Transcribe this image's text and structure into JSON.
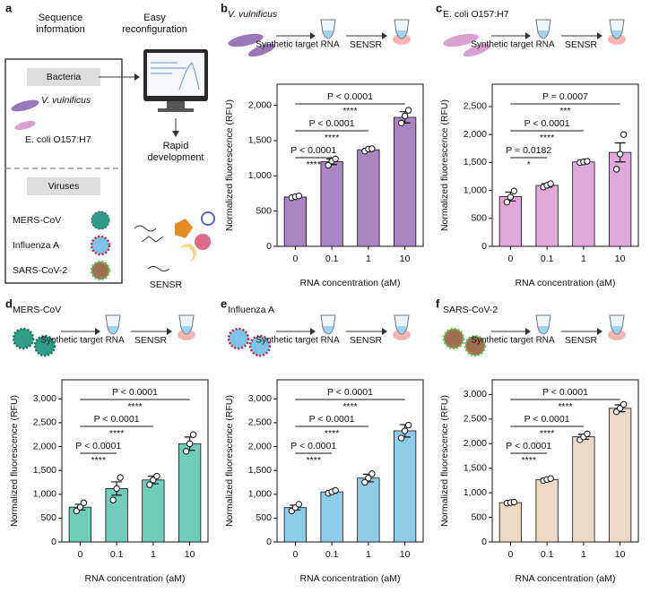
{
  "panel_a": {
    "label": "a",
    "sequence": "Sequence information",
    "reconfig": "Easy reconfiguration",
    "bacteria_header": "Bacteria",
    "bacteria": [
      "V. vulnificus",
      "E. coli O157:H7"
    ],
    "virus_header": "Viruses",
    "viruses": [
      "MERS-CoV",
      "Influenza A",
      "SARS-CoV-2"
    ],
    "development": "Rapid development",
    "product": "SENSR"
  },
  "chart_data": [
    {
      "type": "bar",
      "panel": "b",
      "organism": "V. vulnificus",
      "steps": [
        "Synthetic target RNA",
        "SENSR"
      ],
      "ylabel": "Normalized fluorescence (RFU)",
      "xlabel": "RNA concentration (aM)",
      "categories": [
        "0",
        "0.1",
        "1",
        "10"
      ],
      "values": [
        700,
        1200,
        1370,
        1830
      ],
      "errors": [
        15,
        40,
        20,
        80
      ],
      "points": [
        [
          690,
          705,
          715
        ],
        [
          1150,
          1210,
          1240
        ],
        [
          1350,
          1380,
          1385
        ],
        [
          1750,
          1850,
          1930
        ]
      ],
      "color": "#a985c3",
      "ylim": [
        0,
        2300
      ],
      "yticks": [
        0,
        500,
        {
          "value": 1000,
          "label": "1,000"
        },
        {
          "value": 1500,
          "label": "1,500"
        },
        {
          "value": 2000,
          "label": "2,000"
        }
      ],
      "comparisons": [
        {
          "p": "P < 0.0001",
          "stars": "****"
        },
        {
          "p": "P < 0.0001",
          "stars": "****"
        },
        {
          "p": "P < 0.0001",
          "stars": "****"
        }
      ]
    },
    {
      "type": "bar",
      "panel": "c",
      "organism": "E. coli O157:H7",
      "steps": [
        "Synthetic target RNA",
        "SENSR"
      ],
      "ylabel": "Normalized fluorescence (RFU)",
      "xlabel": "RNA concentration (aM)",
      "categories": [
        "0",
        "0.1",
        "1",
        "10"
      ],
      "values": [
        890,
        1090,
        1510,
        1680
      ],
      "errors": [
        80,
        30,
        15,
        170
      ],
      "points": [
        [
          790,
          880,
          990
        ],
        [
          1060,
          1090,
          1120
        ],
        [
          1500,
          1510,
          1520
        ],
        [
          1380,
          1650,
          2000
        ]
      ],
      "color": "#e1a8da",
      "ylim": [
        0,
        2900
      ],
      "yticks": [
        0,
        500,
        {
          "value": 1000,
          "label": "1,000"
        },
        {
          "value": 1500,
          "label": "1,500"
        },
        {
          "value": 2000,
          "label": "2,000"
        },
        {
          "value": 2500,
          "label": "2,500"
        }
      ],
      "comparisons": [
        {
          "p": "P = 0.0182",
          "stars": "*"
        },
        {
          "p": "P < 0.0001",
          "stars": "****"
        },
        {
          "p": "P = 0.0007",
          "stars": "***"
        }
      ]
    },
    {
      "type": "bar",
      "panel": "d",
      "organism": "MERS-CoV",
      "steps": [
        "Synthetic target RNA",
        "SENSR"
      ],
      "ylabel": "Normalized fluorescence (RFU)",
      "xlabel": "RNA concentration (aM)",
      "categories": [
        "0",
        "0.1",
        "1",
        "10"
      ],
      "values": [
        730,
        1120,
        1300,
        2060
      ],
      "errors": [
        60,
        140,
        80,
        140
      ],
      "points": [
        [
          650,
          730,
          820
        ],
        [
          880,
          1120,
          1350
        ],
        [
          1200,
          1300,
          1380
        ],
        [
          1900,
          2060,
          2250
        ]
      ],
      "color": "#6fcdb9",
      "ylim": [
        0,
        3400
      ],
      "yticks": [
        0,
        500,
        {
          "value": 1000,
          "label": "1,000"
        },
        {
          "value": 1500,
          "label": "1,500"
        },
        {
          "value": 2000,
          "label": "2,000"
        },
        {
          "value": 2500,
          "label": "2,500"
        },
        {
          "value": 3000,
          "label": "3,000"
        }
      ],
      "comparisons": [
        {
          "p": "P < 0.0001",
          "stars": "****"
        },
        {
          "p": "P < 0.0001",
          "stars": "****"
        },
        {
          "p": "P < 0.0001",
          "stars": "****"
        }
      ]
    },
    {
      "type": "bar",
      "panel": "e",
      "organism": "Influenza A",
      "steps": [
        "Synthetic target RNA",
        "SENSR"
      ],
      "ylabel": "Normalized fluorescence (RFU)",
      "xlabel": "RNA concentration (aM)",
      "categories": [
        "0",
        "0.1",
        "1",
        "10"
      ],
      "values": [
        720,
        1050,
        1340,
        2330
      ],
      "errors": [
        50,
        30,
        80,
        130
      ],
      "points": [
        [
          650,
          720,
          790
        ],
        [
          1020,
          1050,
          1080
        ],
        [
          1250,
          1340,
          1430
        ],
        [
          2180,
          2330,
          2450
        ]
      ],
      "color": "#8ecdea",
      "ylim": [
        0,
        3400
      ],
      "yticks": [
        0,
        500,
        {
          "value": 1000,
          "label": "1,000"
        },
        {
          "value": 1500,
          "label": "1,500"
        },
        {
          "value": 2000,
          "label": "2,000"
        },
        {
          "value": 2500,
          "label": "2,500"
        },
        {
          "value": 3000,
          "label": "3,000"
        }
      ],
      "comparisons": [
        {
          "p": "P < 0.0001",
          "stars": "****"
        },
        {
          "p": "P < 0.0001",
          "stars": "****"
        },
        {
          "p": "P < 0.0001",
          "stars": "****"
        }
      ]
    },
    {
      "type": "bar",
      "panel": "f",
      "organism": "SARS-CoV-2",
      "steps": [
        "Synthetic target RNA",
        "SENSR"
      ],
      "ylabel": "Normalized fluorescence (RFU)",
      "xlabel": "RNA concentration (aM)",
      "categories": [
        "0",
        "0.1",
        "1",
        "10"
      ],
      "values": [
        800,
        1270,
        2140,
        2720
      ],
      "errors": [
        15,
        20,
        50,
        70
      ],
      "points": [
        [
          790,
          800,
          810
        ],
        [
          1250,
          1270,
          1290
        ],
        [
          2080,
          2140,
          2200
        ],
        [
          2650,
          2720,
          2800
        ]
      ],
      "color": "#ead9c5",
      "ylim": [
        0,
        3300
      ],
      "yticks": [
        0,
        500,
        {
          "value": 1000,
          "label": "1,000"
        },
        {
          "value": 1500,
          "label": "1,500"
        },
        {
          "value": 2000,
          "label": "2,000"
        },
        {
          "value": 2500,
          "label": "2,500"
        },
        {
          "value": 3000,
          "label": "3,000"
        }
      ],
      "comparisons": [
        {
          "p": "P < 0.0001",
          "stars": "****"
        },
        {
          "p": "P < 0.0001",
          "stars": "****"
        },
        {
          "p": "P < 0.0001",
          "stars": "****"
        }
      ]
    }
  ]
}
